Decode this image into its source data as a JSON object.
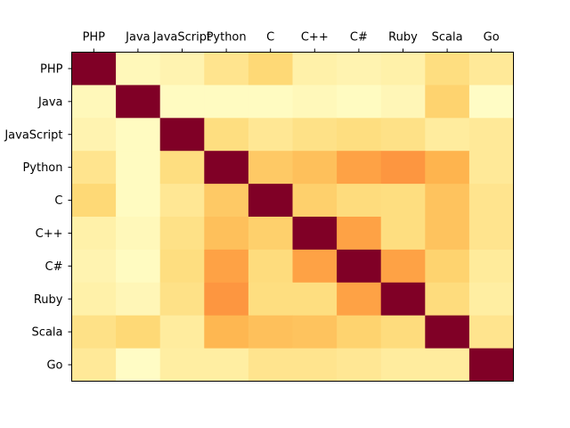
{
  "chart_data": {
    "type": "heatmap",
    "title": "",
    "xlabel": "",
    "ylabel": "",
    "x_tick_position": "top",
    "colormap": "YlOrRd",
    "color_range": [
      0,
      1
    ],
    "grid": false,
    "legend": "none",
    "x_categories": [
      "PHP",
      "Java",
      "JavaScript",
      "Python",
      "C",
      "C++",
      "C#",
      "Ruby",
      "Scala",
      "Go"
    ],
    "y_categories": [
      "PHP",
      "Java",
      "JavaScript",
      "Python",
      "C",
      "C++",
      "C#",
      "Ruby",
      "Scala",
      "Go"
    ],
    "values": [
      [
        1.0,
        0.05,
        0.08,
        0.18,
        0.25,
        0.1,
        0.08,
        0.1,
        0.22,
        0.15
      ],
      [
        0.05,
        1.0,
        0.03,
        0.03,
        0.03,
        0.05,
        0.03,
        0.06,
        0.27,
        0.02
      ],
      [
        0.08,
        0.03,
        1.0,
        0.22,
        0.16,
        0.2,
        0.22,
        0.2,
        0.13,
        0.15
      ],
      [
        0.18,
        0.03,
        0.22,
        1.0,
        0.3,
        0.33,
        0.43,
        0.47,
        0.37,
        0.15
      ],
      [
        0.25,
        0.03,
        0.16,
        0.3,
        1.0,
        0.28,
        0.23,
        0.22,
        0.32,
        0.18
      ],
      [
        0.1,
        0.05,
        0.2,
        0.33,
        0.28,
        1.0,
        0.43,
        0.22,
        0.32,
        0.18
      ],
      [
        0.08,
        0.03,
        0.22,
        0.43,
        0.23,
        0.43,
        1.0,
        0.43,
        0.27,
        0.14
      ],
      [
        0.1,
        0.06,
        0.2,
        0.47,
        0.22,
        0.22,
        0.43,
        1.0,
        0.23,
        0.12
      ],
      [
        0.2,
        0.25,
        0.13,
        0.36,
        0.33,
        0.32,
        0.27,
        0.23,
        1.0,
        0.18
      ],
      [
        0.15,
        0.02,
        0.12,
        0.12,
        0.18,
        0.18,
        0.16,
        0.13,
        0.13,
        1.0
      ]
    ]
  }
}
